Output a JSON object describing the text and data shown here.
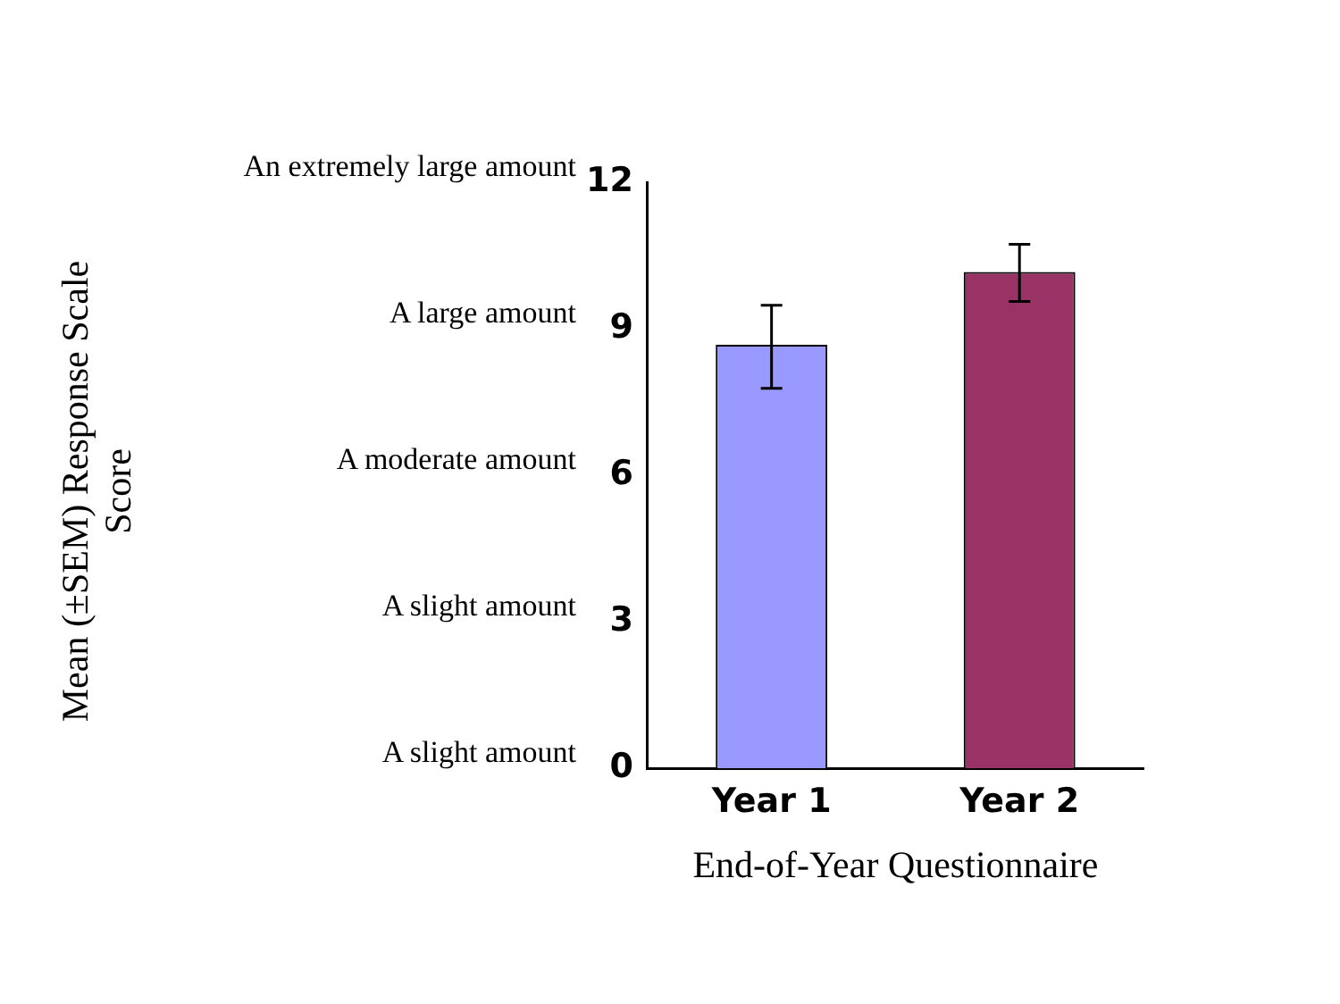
{
  "chart_data": {
    "type": "bar",
    "xlabel": "End-of-Year Questionnaire",
    "categories": [
      "Year 1",
      "Year 2"
    ],
    "values": [
      8.67,
      10.16
    ],
    "colors": [
      "#9999ff",
      "#993366"
    ],
    "errors": [
      [
        7.78,
        9.48
      ],
      [
        9.56,
        10.73
      ]
    ],
    "ylim": [
      0,
      12
    ],
    "yticks": [
      0,
      3,
      6,
      9,
      12
    ],
    "annotations": [
      "Mean (±SEM) Response Scale Score",
      "A slight amount",
      "A slight amount",
      "A moderate amount",
      "A large amount",
      "An extremely large amount"
    ],
    "grid": false,
    "legend": false
  }
}
